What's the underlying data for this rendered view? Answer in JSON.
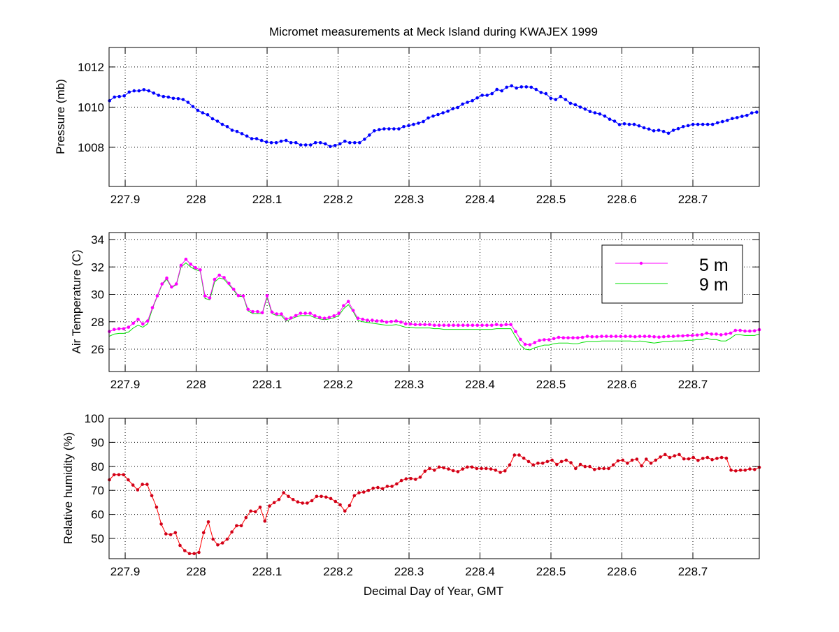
{
  "chart_data": {
    "title": "Micromet measurements at Meck Island during KWAJEX 1999",
    "xlabel": "Decimal Day of Year, GMT",
    "xlim": [
      227.8773,
      228.7936
    ],
    "xticks": [
      227.9,
      228,
      228.1,
      228.2,
      228.3,
      228.4,
      228.5,
      228.6,
      228.7
    ],
    "xtick_labels": [
      "227.9",
      "228",
      "228.1",
      "228.2",
      "228.3",
      "228.4",
      "228.5",
      "228.6",
      "228.7"
    ],
    "grid": true,
    "panels": [
      {
        "type": "line",
        "ylabel": "Pressure (mb)",
        "ylim": [
          1006.05,
          1012.97
        ],
        "yticks": [
          1008,
          1010,
          1012
        ],
        "ytick_labels": [
          "1008",
          "1010",
          "1012"
        ],
        "series": [
          {
            "name": "Pressure",
            "color": "#0000ff",
            "markers": true,
            "x_first": 227.878,
            "x_last": 228.79,
            "values": [
              1010.32,
              1010.5,
              1010.53,
              1010.56,
              1010.75,
              1010.81,
              1010.81,
              1010.87,
              1010.81,
              1010.7,
              1010.59,
              1010.53,
              1010.5,
              1010.44,
              1010.42,
              1010.38,
              1010.24,
              1010.03,
              1009.84,
              1009.72,
              1009.62,
              1009.42,
              1009.3,
              1009.14,
              1009.03,
              1008.85,
              1008.79,
              1008.68,
              1008.56,
              1008.43,
              1008.43,
              1008.34,
              1008.26,
              1008.23,
              1008.23,
              1008.3,
              1008.34,
              1008.23,
              1008.23,
              1008.12,
              1008.12,
              1008.12,
              1008.23,
              1008.23,
              1008.17,
              1008.04,
              1008.09,
              1008.17,
              1008.3,
              1008.23,
              1008.23,
              1008.23,
              1008.4,
              1008.61,
              1008.82,
              1008.88,
              1008.92,
              1008.92,
              1008.92,
              1008.92,
              1009.03,
              1009.08,
              1009.14,
              1009.2,
              1009.28,
              1009.46,
              1009.55,
              1009.63,
              1009.72,
              1009.8,
              1009.92,
              1009.98,
              1010.15,
              1010.24,
              1010.32,
              1010.46,
              1010.59,
              1010.59,
              1010.67,
              1010.88,
              1010.81,
              1010.99,
              1011.06,
              1010.95,
              1011.01,
              1011.01,
              1010.99,
              1010.88,
              1010.73,
              1010.67,
              1010.44,
              1010.38,
              1010.53,
              1010.38,
              1010.19,
              1010.12,
              1010.0,
              1009.9,
              1009.78,
              1009.72,
              1009.66,
              1009.55,
              1009.4,
              1009.3,
              1009.13,
              1009.17,
              1009.14,
              1009.14,
              1009.07,
              1008.97,
              1008.91,
              1008.82,
              1008.85,
              1008.79,
              1008.7,
              1008.85,
              1008.93,
              1009.03,
              1009.08,
              1009.14,
              1009.14,
              1009.14,
              1009.14,
              1009.14,
              1009.22,
              1009.28,
              1009.34,
              1009.43,
              1009.48,
              1009.54,
              1009.59,
              1009.71,
              1009.75
            ]
          }
        ]
      },
      {
        "type": "line",
        "ylabel": "Air Temperature (C)",
        "ylim": [
          24.37,
          34.51
        ],
        "yticks": [
          26,
          28,
          30,
          32,
          34
        ],
        "ytick_labels": [
          "26",
          "28",
          "30",
          "32",
          "34"
        ],
        "legend": {
          "placement": "top-right",
          "entries": [
            "5 m",
            "9 m"
          ]
        },
        "series": [
          {
            "name": "5 m",
            "color": "#ff00ff",
            "markers": true,
            "x_first": 227.8778,
            "x_last": 228.7936,
            "values": [
              27.29,
              27.44,
              27.49,
              27.49,
              27.6,
              27.89,
              28.18,
              27.84,
              28.06,
              29.03,
              29.89,
              30.76,
              31.19,
              30.54,
              30.76,
              32.12,
              32.56,
              32.2,
              31.95,
              31.79,
              29.89,
              29.74,
              31.09,
              31.4,
              31.23,
              30.8,
              30.37,
              29.91,
              29.89,
              28.91,
              28.74,
              28.74,
              28.66,
              29.91,
              28.71,
              28.57,
              28.57,
              28.2,
              28.28,
              28.45,
              28.62,
              28.62,
              28.62,
              28.43,
              28.32,
              28.26,
              28.32,
              28.43,
              28.61,
              29.17,
              29.48,
              28.83,
              28.26,
              28.18,
              28.11,
              28.11,
              28.06,
              28.06,
              27.97,
              28.02,
              28.06,
              27.97,
              27.85,
              27.84,
              27.8,
              27.8,
              27.8,
              27.8,
              27.75,
              27.75,
              27.75,
              27.75,
              27.75,
              27.75,
              27.75,
              27.75,
              27.75,
              27.75,
              27.75,
              27.75,
              27.75,
              27.8,
              27.75,
              27.8,
              27.8,
              27.29,
              26.72,
              26.35,
              26.32,
              26.48,
              26.64,
              26.69,
              26.69,
              26.77,
              26.86,
              26.83,
              26.83,
              26.83,
              26.83,
              26.86,
              26.94,
              26.91,
              26.91,
              26.94,
              26.94,
              26.94,
              26.94,
              26.94,
              26.94,
              26.94,
              26.91,
              26.94,
              26.94,
              26.94,
              26.91,
              26.88,
              26.91,
              26.94,
              26.94,
              26.97,
              26.97,
              27.0,
              27.0,
              27.03,
              27.06,
              27.17,
              27.1,
              27.1,
              27.05,
              27.1,
              27.17,
              27.37,
              27.37,
              27.32,
              27.32,
              27.34,
              27.42
            ]
          },
          {
            "name": "9 m",
            "color": "#00e000",
            "markers": false,
            "x_first": 227.8778,
            "x_last": 228.7936,
            "values": [
              26.95,
              27.1,
              27.15,
              27.15,
              27.25,
              27.55,
              27.75,
              27.6,
              27.85,
              28.95,
              29.85,
              30.7,
              31.1,
              30.5,
              30.7,
              32.0,
              32.3,
              32.0,
              31.8,
              31.7,
              29.7,
              29.6,
              30.9,
              31.2,
              31.1,
              30.7,
              30.3,
              29.85,
              29.85,
              28.8,
              28.6,
              28.6,
              28.6,
              29.8,
              28.6,
              28.45,
              28.45,
              28.05,
              28.2,
              28.35,
              28.45,
              28.45,
              28.45,
              28.3,
              28.2,
              28.15,
              28.2,
              28.3,
              28.45,
              28.95,
              29.25,
              28.75,
              28.1,
              28.0,
              27.95,
              27.9,
              27.85,
              27.8,
              27.75,
              27.75,
              27.8,
              27.7,
              27.6,
              27.6,
              27.55,
              27.55,
              27.55,
              27.55,
              27.5,
              27.5,
              27.45,
              27.45,
              27.45,
              27.45,
              27.45,
              27.45,
              27.45,
              27.45,
              27.45,
              27.45,
              27.45,
              27.5,
              27.5,
              27.5,
              27.5,
              26.9,
              26.3,
              26.0,
              25.95,
              26.1,
              26.2,
              26.3,
              26.3,
              26.4,
              26.45,
              26.45,
              26.45,
              26.4,
              26.4,
              26.5,
              26.55,
              26.55,
              26.55,
              26.6,
              26.6,
              26.6,
              26.6,
              26.6,
              26.6,
              26.6,
              26.55,
              26.6,
              26.55,
              26.5,
              26.45,
              26.5,
              26.55,
              26.55,
              26.6,
              26.6,
              26.6,
              26.65,
              26.65,
              26.7,
              26.7,
              26.8,
              26.7,
              26.7,
              26.6,
              26.6,
              26.8,
              27.05,
              27.05,
              27.0,
              27.0,
              27.0,
              27.1
            ]
          }
        ]
      },
      {
        "type": "line",
        "ylabel": "Relative humidity (%)",
        "ylim": [
          41.57,
          100
        ],
        "yticks": [
          50,
          60,
          70,
          80,
          90,
          100
        ],
        "ytick_labels": [
          "50",
          "60",
          "70",
          "80",
          "90",
          "100"
        ],
        "series": [
          {
            "name": "Relative humidity",
            "color": "#ff0000",
            "markers": true,
            "x_first": 227.8778,
            "x_last": 228.7936,
            "values": [
              74.4,
              76.5,
              76.5,
              76.5,
              74.4,
              72.2,
              70.2,
              72.5,
              72.5,
              67.8,
              63.0,
              56.0,
              51.9,
              51.6,
              52.4,
              47.1,
              44.9,
              43.7,
              43.7,
              44.2,
              52.4,
              56.9,
              49.7,
              47.3,
              48.1,
              49.7,
              52.7,
              55.3,
              55.3,
              58.7,
              61.4,
              61.1,
              63.0,
              57.2,
              63.5,
              64.9,
              66.2,
              69.0,
              67.5,
              66.2,
              65.2,
              64.7,
              64.7,
              65.7,
              67.5,
              67.5,
              67.2,
              66.6,
              65.4,
              64.0,
              61.4,
              63.7,
              67.8,
              69.0,
              69.3,
              70.0,
              70.9,
              71.2,
              70.7,
              71.7,
              71.7,
              72.7,
              74.1,
              74.8,
              74.9,
              74.6,
              75.5,
              78.0,
              79.1,
              78.4,
              79.7,
              79.4,
              78.9,
              78.2,
              77.8,
              78.9,
              79.7,
              79.7,
              79.1,
              79.1,
              79.1,
              78.9,
              78.4,
              77.5,
              78.1,
              80.6,
              84.7,
              84.7,
              83.4,
              82.0,
              80.6,
              81.3,
              81.3,
              82.0,
              82.6,
              80.8,
              82.0,
              82.6,
              81.5,
              79.1,
              80.8,
              79.9,
              79.9,
              78.7,
              79.1,
              79.1,
              79.1,
              80.6,
              82.3,
              82.6,
              81.3,
              82.6,
              83.0,
              80.2,
              83.0,
              81.3,
              82.6,
              83.9,
              84.9,
              83.7,
              84.4,
              84.9,
              83.1,
              83.1,
              83.7,
              82.5,
              83.3,
              83.7,
              82.8,
              83.3,
              83.7,
              83.4,
              78.4,
              78.1,
              78.4,
              78.4,
              78.9,
              78.7,
              79.6
            ]
          }
        ]
      }
    ]
  }
}
